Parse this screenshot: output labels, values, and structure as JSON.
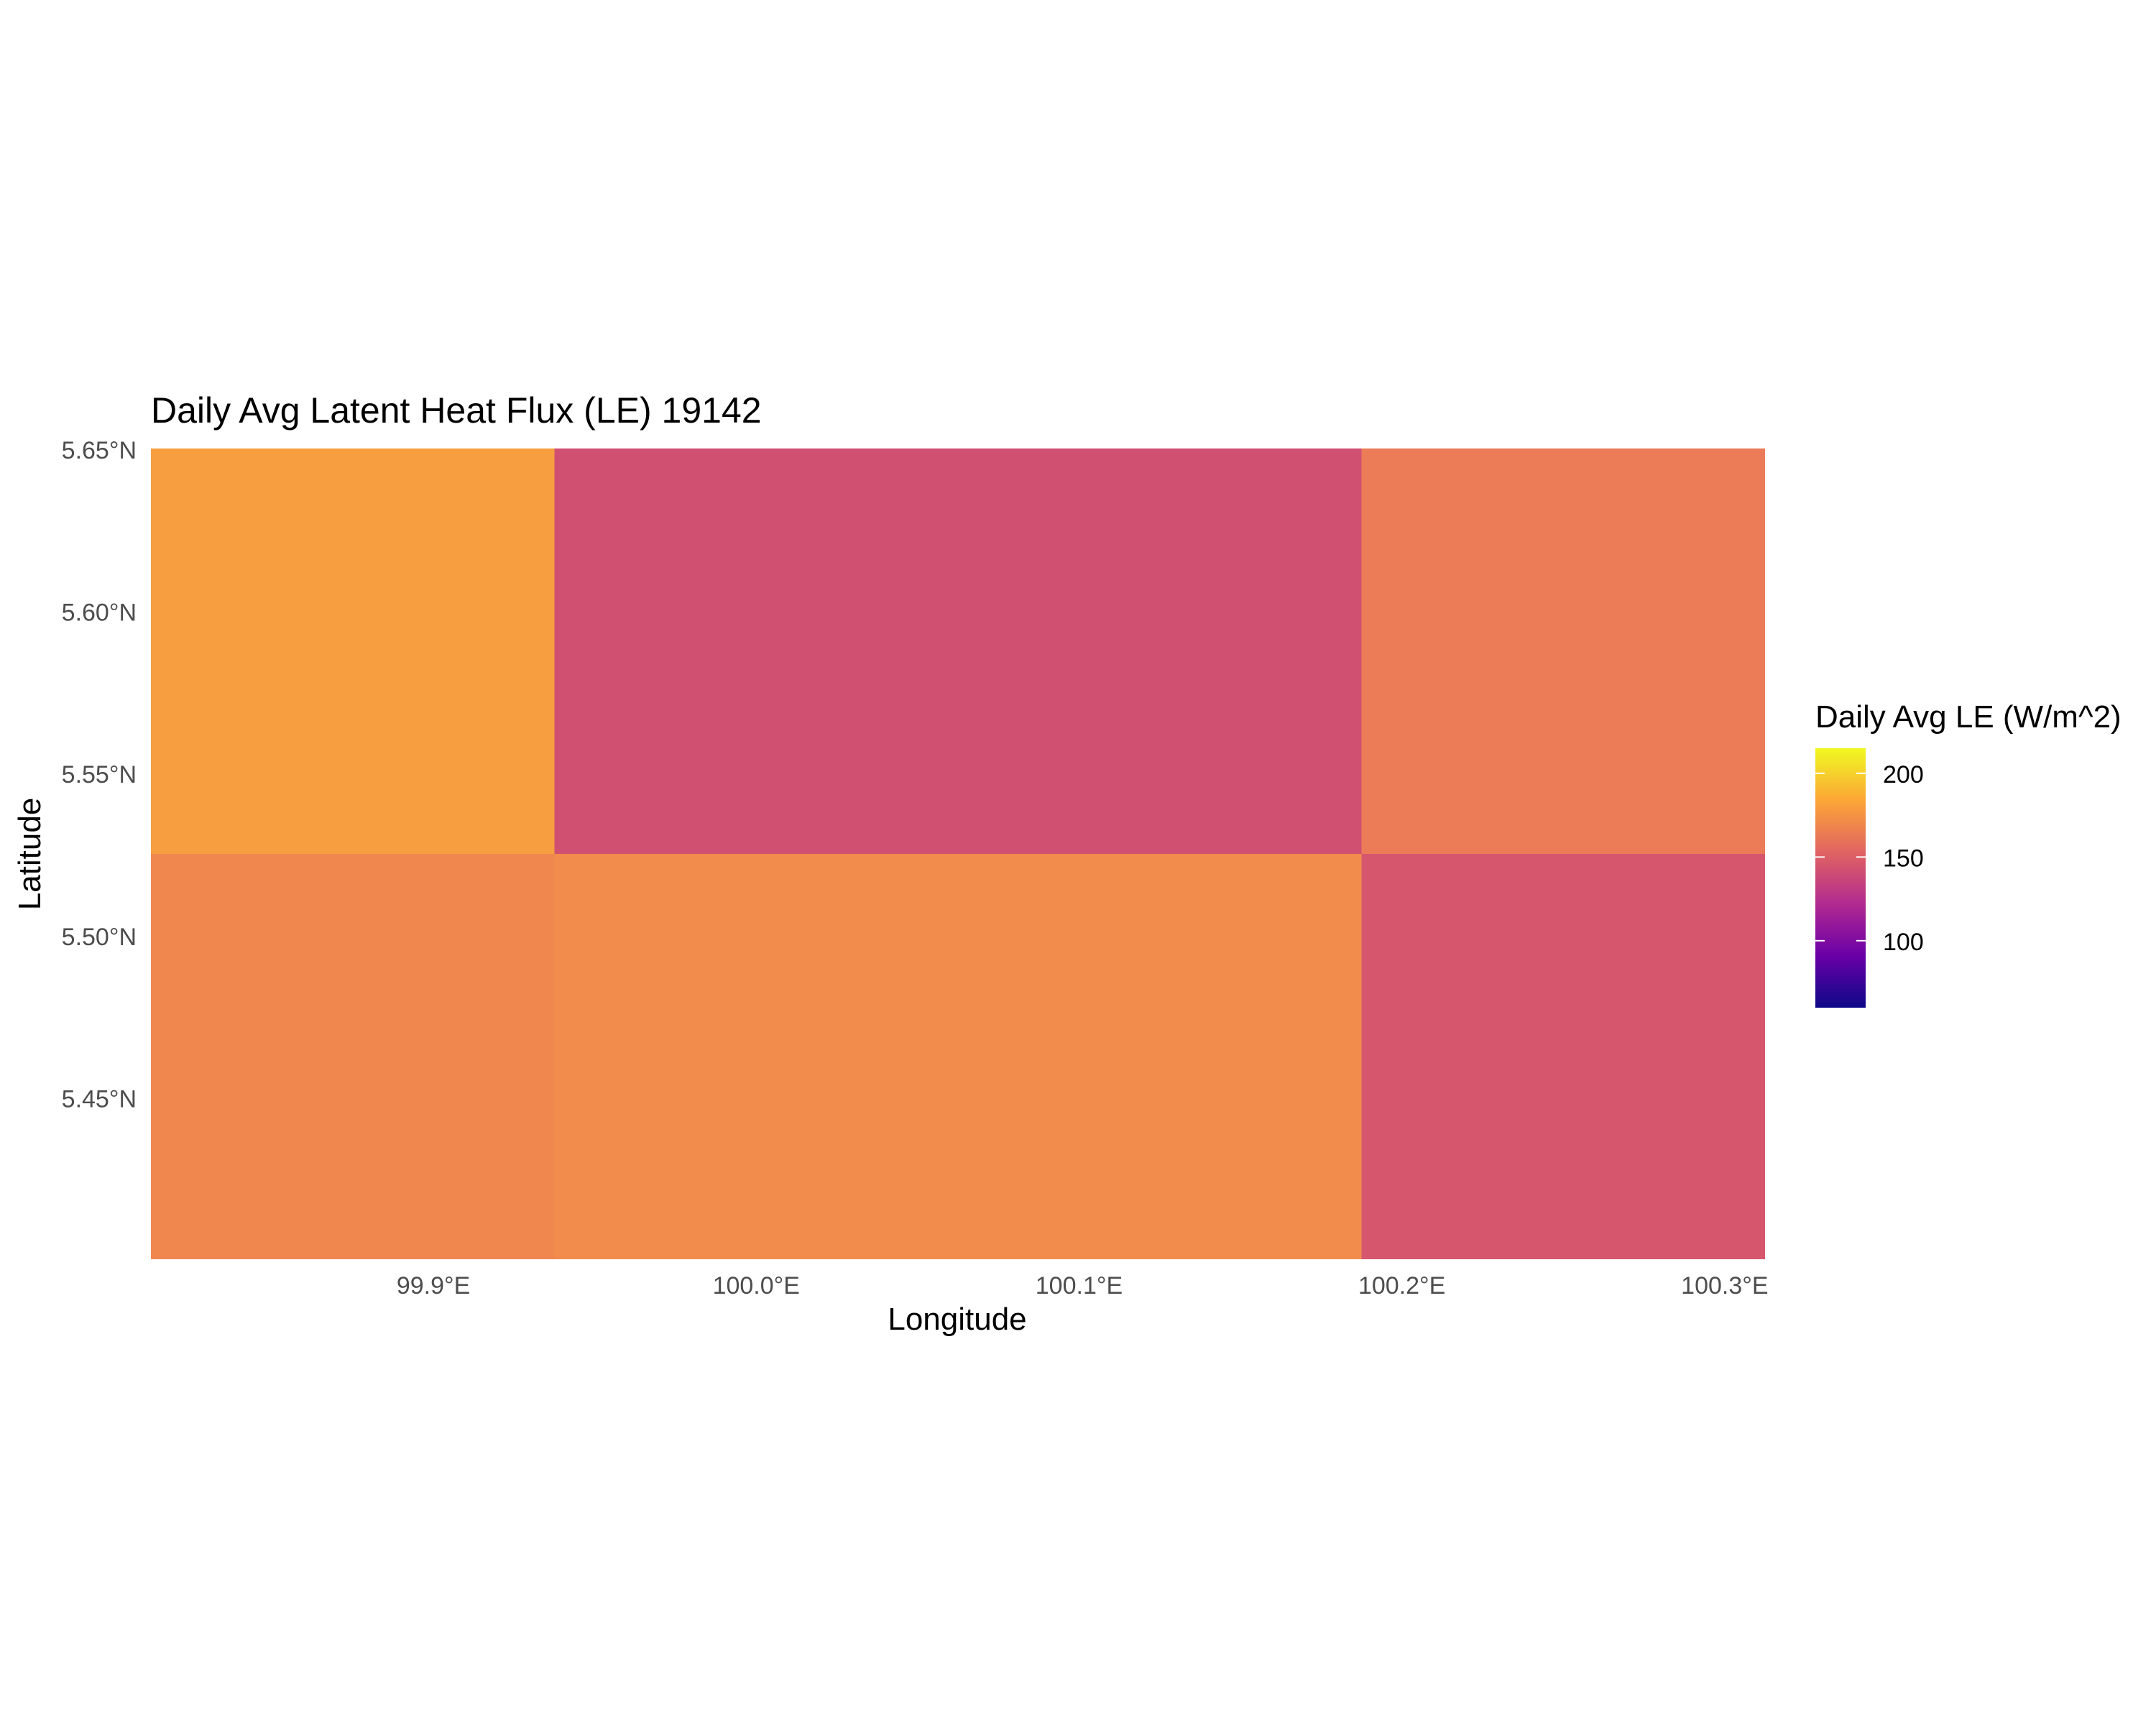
{
  "chart_data": {
    "type": "heatmap",
    "title": "Daily Avg Latent Heat Flux (LE) 19142",
    "xlabel": "Longitude",
    "ylabel": "Latitude",
    "xlim": [
      99.8125,
      100.3125
    ],
    "ylim": [
      5.4,
      5.65
    ],
    "x_ticks": [
      99.9,
      100.0,
      100.1,
      100.2,
      100.3
    ],
    "x_tick_labels": [
      "99.9°E",
      "100.0°E",
      "100.1°E",
      "100.2°E",
      "100.3°E"
    ],
    "y_ticks": [
      5.45,
      5.5,
      5.55,
      5.6,
      5.65
    ],
    "y_tick_labels": [
      "5.45°N",
      "5.50°N",
      "5.55°N",
      "5.60°N",
      "5.65°N"
    ],
    "grid": false,
    "cells": [
      {
        "x0": 99.8125,
        "x1": 99.9375,
        "y0": 5.525,
        "y1": 5.65,
        "value": 180,
        "color": "#f79e41"
      },
      {
        "x0": 99.9375,
        "x1": 100.1875,
        "y0": 5.525,
        "y1": 5.65,
        "value": 143,
        "color": "#d05072"
      },
      {
        "x0": 100.1875,
        "x1": 100.3125,
        "y0": 5.525,
        "y1": 5.65,
        "value": 163,
        "color": "#ec7b58"
      },
      {
        "x0": 99.8125,
        "x1": 99.9375,
        "y0": 5.4,
        "y1": 5.525,
        "value": 167,
        "color": "#f0874f"
      },
      {
        "x0": 99.9375,
        "x1": 100.1875,
        "y0": 5.4,
        "y1": 5.525,
        "value": 170,
        "color": "#f28c4d"
      },
      {
        "x0": 100.1875,
        "x1": 100.3125,
        "y0": 5.4,
        "y1": 5.525,
        "value": 146,
        "color": "#d6566d"
      }
    ],
    "legend": {
      "title": "Daily Avg LE (W/m^2)",
      "position": "right",
      "min": 60,
      "max": 215,
      "ticks": [
        100,
        150,
        200
      ],
      "tick_labels": [
        "100",
        "150",
        "200"
      ],
      "gradient": [
        "#0d0887",
        "#6a00a8",
        "#b12a90",
        "#e16462",
        "#fca636",
        "#f0f921"
      ]
    }
  }
}
